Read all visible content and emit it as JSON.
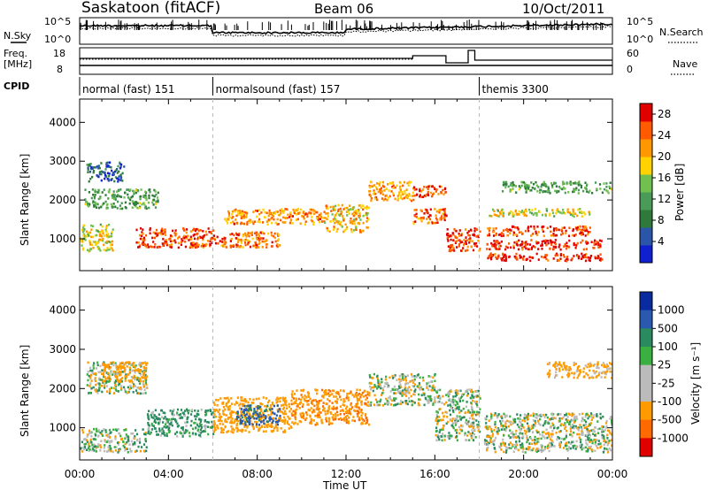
{
  "header": {
    "station": "Saskatoon (fitACF)",
    "beam": "Beam 06",
    "date": "10/Oct/2011"
  },
  "noise_panel": {
    "left_label": "N.Sky",
    "right_label": "N.Search",
    "ticks": [
      "10^5",
      "10^0"
    ]
  },
  "freq_panel": {
    "left_label_1": "Freq.",
    "left_label_2": "[MHz]",
    "right_label": "Nave",
    "left_ticks": [
      "18",
      "8"
    ],
    "right_ticks": [
      "60",
      "0"
    ]
  },
  "cpid": {
    "label": "CPID",
    "segments": [
      {
        "name": "normal (fast) 151",
        "start_hour": 0
      },
      {
        "name": "normalsound (fast) 157",
        "start_hour": 6
      },
      {
        "name": "themis 3300",
        "start_hour": 18
      }
    ]
  },
  "chart_data": [
    {
      "type": "heatmap",
      "title": "",
      "xlabel": "",
      "ylabel": "Slant Range [km]",
      "xlim": [
        0,
        24
      ],
      "ylim": [
        180,
        4600
      ],
      "yticks": [
        1000,
        2000,
        3000,
        4000
      ],
      "colorbar": {
        "label": "Power [dB]",
        "ticks": [
          4,
          8,
          12,
          16,
          20,
          24,
          28
        ],
        "range": [
          0,
          30
        ],
        "colors": [
          "#1020d0",
          "#2a55a8",
          "#2f7a3a",
          "#4a9a58",
          "#70c050",
          "#ffd200",
          "#ff9800",
          "#ff5a00",
          "#e00000"
        ]
      },
      "scatter_bands": [
        {
          "t0": 0.0,
          "t1": 1.5,
          "r0": 700,
          "r1": 1400,
          "value": 18
        },
        {
          "t0": 0.2,
          "t1": 3.5,
          "r0": 1800,
          "r1": 2300,
          "value": 12
        },
        {
          "t0": 0.3,
          "t1": 2.0,
          "r0": 2500,
          "r1": 3000,
          "value": 6
        },
        {
          "t0": 2.5,
          "t1": 6.0,
          "r0": 800,
          "r1": 1300,
          "value": 26
        },
        {
          "t0": 6.0,
          "t1": 9.0,
          "r0": 800,
          "r1": 1200,
          "value": 24
        },
        {
          "t0": 6.5,
          "t1": 11.0,
          "r0": 1400,
          "r1": 1800,
          "value": 22
        },
        {
          "t0": 11.0,
          "t1": 13.0,
          "r0": 1200,
          "r1": 1900,
          "value": 20
        },
        {
          "t0": 13.0,
          "t1": 15.0,
          "r0": 2000,
          "r1": 2500,
          "value": 22
        },
        {
          "t0": 15.0,
          "t1": 16.5,
          "r0": 2100,
          "r1": 2400,
          "value": 26
        },
        {
          "t0": 15.0,
          "t1": 16.5,
          "r0": 1400,
          "r1": 1800,
          "value": 24
        },
        {
          "t0": 16.5,
          "t1": 18.0,
          "r0": 700,
          "r1": 1300,
          "value": 26
        },
        {
          "t0": 18.3,
          "t1": 23.5,
          "r0": 450,
          "r1": 650,
          "value": 28
        },
        {
          "t0": 18.3,
          "t1": 23.5,
          "r0": 750,
          "r1": 1000,
          "value": 28
        },
        {
          "t0": 18.3,
          "t1": 23.0,
          "r0": 1100,
          "r1": 1350,
          "value": 26
        },
        {
          "t0": 18.3,
          "t1": 23.0,
          "r0": 1600,
          "r1": 1800,
          "value": 18
        },
        {
          "t0": 19.0,
          "t1": 24.0,
          "r0": 2200,
          "r1": 2500,
          "value": 12
        }
      ]
    },
    {
      "type": "heatmap",
      "title": "",
      "xlabel": "Time UT",
      "ylabel": "Slant Range [km]",
      "xlim": [
        0,
        24
      ],
      "ylim": [
        180,
        4600
      ],
      "xticks": [
        "00:00",
        "04:00",
        "08:00",
        "12:00",
        "16:00",
        "20:00",
        "00:00"
      ],
      "yticks": [
        1000,
        2000,
        3000,
        4000
      ],
      "colorbar": {
        "label": "Velocity [m s⁻¹]",
        "ticks": [
          1000,
          500,
          100,
          25,
          -25,
          -100,
          -500,
          -1000
        ],
        "colors": [
          "#0a2aa0",
          "#2a5ab0",
          "#2a8a60",
          "#3ab040",
          "#bbbbbb",
          "#bbbbbb",
          "#ff9a00",
          "#ff6a00",
          "#e00000"
        ]
      },
      "scatter_bands": [
        {
          "t0": 0.0,
          "t1": 3.0,
          "r0": 400,
          "r1": 1000,
          "value": 0
        },
        {
          "t0": 0.3,
          "t1": 3.0,
          "r0": 1900,
          "r1": 2700,
          "value": 0
        },
        {
          "t0": 1.0,
          "t1": 3.0,
          "r0": 2200,
          "r1": 2700,
          "value": -300
        },
        {
          "t0": 3.0,
          "t1": 6.0,
          "r0": 800,
          "r1": 1500,
          "value": 150
        },
        {
          "t0": 6.0,
          "t1": 9.5,
          "r0": 900,
          "r1": 1800,
          "value": -300
        },
        {
          "t0": 7.0,
          "t1": 9.0,
          "r0": 1100,
          "r1": 1600,
          "value": 600
        },
        {
          "t0": 9.5,
          "t1": 13.0,
          "r0": 1100,
          "r1": 2000,
          "value": -400
        },
        {
          "t0": 13.0,
          "t1": 16.0,
          "r0": 1600,
          "r1": 2400,
          "value": 0
        },
        {
          "t0": 16.0,
          "t1": 18.0,
          "r0": 700,
          "r1": 2000,
          "value": 0
        },
        {
          "t0": 18.2,
          "t1": 24.0,
          "r0": 400,
          "r1": 1400,
          "value": 0
        },
        {
          "t0": 21.0,
          "t1": 24.0,
          "r0": 2300,
          "r1": 2700,
          "value": -200
        }
      ]
    }
  ]
}
